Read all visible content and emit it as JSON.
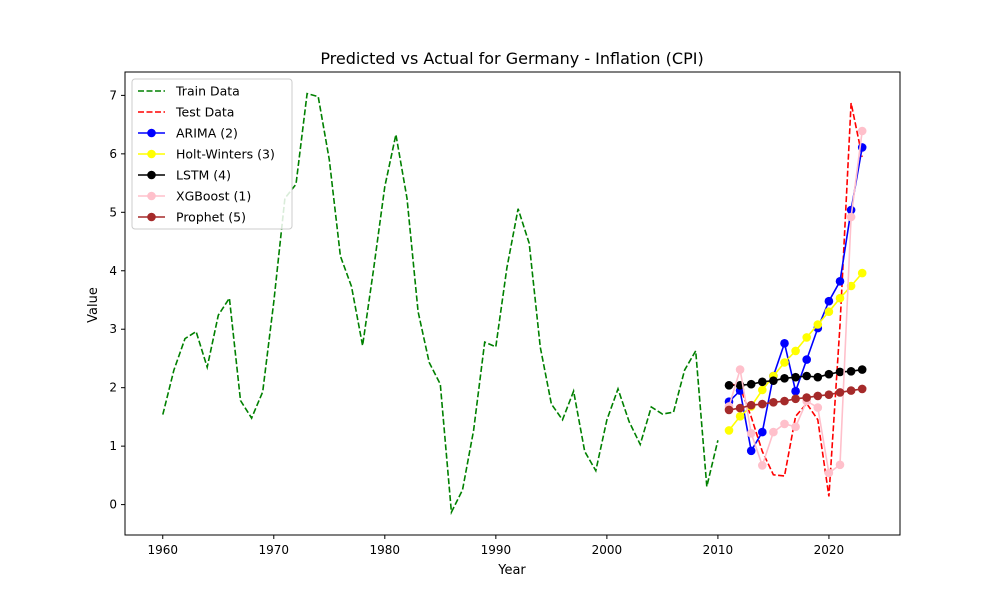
{
  "chart_data": {
    "type": "line",
    "title": "Predicted vs Actual for Germany - Inflation (CPI)",
    "xlabel": "Year",
    "ylabel": "Value",
    "xlim": [
      1956.6,
      2026.4
    ],
    "ylim": [
      -0.52,
      7.4
    ],
    "xticks": [
      1960,
      1970,
      1980,
      1990,
      2000,
      2010,
      2020
    ],
    "yticks": [
      0,
      1,
      2,
      3,
      4,
      5,
      6,
      7
    ],
    "legend_position": "top-left",
    "grid": false,
    "series": [
      {
        "name": "Train Data",
        "color": "#008000",
        "style": "dashed",
        "markers": false,
        "x": [
          1960,
          1961,
          1962,
          1963,
          1964,
          1965,
          1966,
          1967,
          1968,
          1969,
          1970,
          1971,
          1972,
          1973,
          1974,
          1975,
          1976,
          1977,
          1978,
          1979,
          1980,
          1981,
          1982,
          1983,
          1984,
          1985,
          1986,
          1987,
          1988,
          1989,
          1990,
          1991,
          1992,
          1993,
          1994,
          1995,
          1996,
          1997,
          1998,
          1999,
          2000,
          2001,
          2002,
          2003,
          2004,
          2005,
          2006,
          2007,
          2008,
          2009,
          2010
        ],
        "values": [
          1.54,
          2.3,
          2.84,
          2.96,
          2.35,
          3.24,
          3.53,
          1.78,
          1.48,
          1.93,
          3.47,
          5.24,
          5.48,
          7.03,
          6.98,
          5.9,
          4.25,
          3.73,
          2.72,
          4.04,
          5.44,
          6.33,
          5.24,
          3.3,
          2.43,
          2.06,
          -0.13,
          0.25,
          1.27,
          2.78,
          2.7,
          4.05,
          5.06,
          4.47,
          2.69,
          1.72,
          1.45,
          1.94,
          0.91,
          0.58,
          1.45,
          1.98,
          1.42,
          1.03,
          1.67,
          1.55,
          1.58,
          2.3,
          2.63,
          0.31,
          1.1
        ]
      },
      {
        "name": "Test Data",
        "color": "#ff0000",
        "style": "dashed",
        "markers": false,
        "x": [
          2011,
          2012,
          2013,
          2014,
          2015,
          2016,
          2017,
          2018,
          2019,
          2020,
          2021,
          2022,
          2023
        ],
        "values": [
          2.08,
          2.01,
          1.5,
          0.91,
          0.51,
          0.49,
          1.51,
          1.73,
          1.45,
          0.14,
          3.07,
          6.87,
          5.95
        ]
      },
      {
        "name": "ARIMA (2)",
        "color": "#0000ff",
        "style": "solid",
        "markers": true,
        "x": [
          2011,
          2012,
          2013,
          2014,
          2015,
          2016,
          2017,
          2018,
          2019,
          2020,
          2021,
          2022,
          2023
        ],
        "values": [
          1.76,
          1.95,
          0.92,
          1.24,
          2.2,
          2.76,
          1.94,
          2.48,
          3.02,
          3.48,
          3.82,
          5.04,
          6.11
        ]
      },
      {
        "name": "Holt-Winters (3)",
        "color": "#ffff00",
        "style": "solid",
        "markers": true,
        "x": [
          2011,
          2012,
          2013,
          2014,
          2015,
          2016,
          2017,
          2018,
          2019,
          2020,
          2021,
          2022,
          2023
        ],
        "values": [
          1.27,
          1.51,
          1.68,
          1.96,
          2.2,
          2.43,
          2.63,
          2.86,
          3.08,
          3.3,
          3.53,
          3.74,
          3.96
        ]
      },
      {
        "name": "LSTM (4)",
        "color": "#000000",
        "style": "solid",
        "markers": true,
        "x": [
          2011,
          2012,
          2013,
          2014,
          2015,
          2016,
          2017,
          2018,
          2019,
          2020,
          2021,
          2022,
          2023
        ],
        "values": [
          2.04,
          2.04,
          2.06,
          2.1,
          2.12,
          2.16,
          2.18,
          2.2,
          2.18,
          2.23,
          2.27,
          2.28,
          2.31
        ]
      },
      {
        "name": "XGBoost (1)",
        "color": "#ffc0cb",
        "style": "solid",
        "markers": true,
        "x": [
          2011,
          2012,
          2013,
          2014,
          2015,
          2016,
          2017,
          2018,
          2019,
          2020,
          2021,
          2022,
          2023
        ],
        "values": [
          1.68,
          2.31,
          1.22,
          0.67,
          1.24,
          1.38,
          1.33,
          1.77,
          1.66,
          0.54,
          0.68,
          4.92,
          6.39
        ]
      },
      {
        "name": "Prophet (5)",
        "color": "#a52a2a",
        "style": "solid",
        "markers": true,
        "x": [
          2011,
          2012,
          2013,
          2014,
          2015,
          2016,
          2017,
          2018,
          2019,
          2020,
          2021,
          2022,
          2023
        ],
        "values": [
          1.62,
          1.65,
          1.7,
          1.72,
          1.75,
          1.77,
          1.81,
          1.83,
          1.86,
          1.88,
          1.92,
          1.95,
          1.98
        ]
      }
    ]
  }
}
